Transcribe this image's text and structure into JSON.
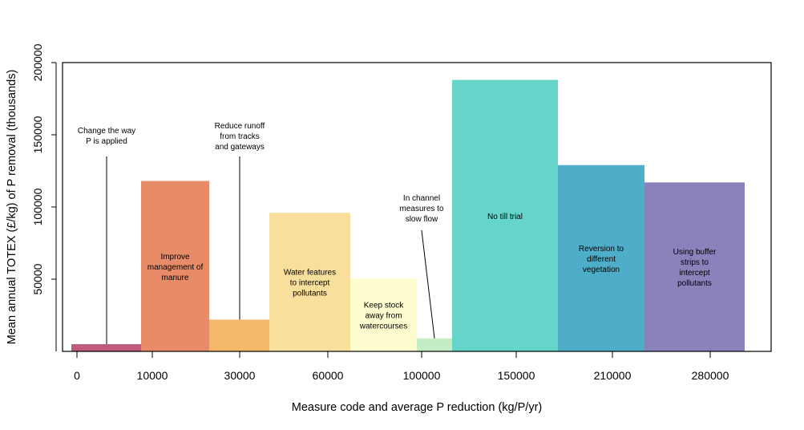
{
  "chart_data": {
    "type": "bar",
    "variable_width": true,
    "title": "",
    "xlabel": "Measure code and average P reduction (kg/P/yr)",
    "ylabel": "Mean annual TOTEX (£/kg) of P removal (thousands)",
    "ylim": [
      0,
      200000
    ],
    "yticks": [
      "50000",
      "100000",
      "150000",
      "200000"
    ],
    "ytick_values": [
      50000,
      100000,
      150000,
      200000
    ],
    "xticks": [
      "0",
      "10000",
      "30000",
      "60000",
      "100000",
      "150000",
      "210000",
      "280000"
    ],
    "grid": false,
    "legend": "none",
    "bars": [
      {
        "label": "Change the way P is applied",
        "label_lines": [
          "Change the way",
          "P is applied"
        ],
        "value": 5000,
        "width_units": 87,
        "color": "#bf5b7e",
        "label_mode": "callout"
      },
      {
        "label": "Improve management of manure",
        "label_lines": [
          "Improve",
          "management of",
          "manure"
        ],
        "value": 118000,
        "width_units": 85,
        "color": "#e78b69",
        "label_mode": "inside"
      },
      {
        "label": "Reduce runoff from tracks and gateways",
        "label_lines": [
          "Reduce runoff",
          "from tracks",
          "and gateways"
        ],
        "value": 22000,
        "width_units": 75,
        "color": "#f5b86b",
        "label_mode": "callout"
      },
      {
        "label": "Water features to intercept pollutants",
        "label_lines": [
          "Water features",
          "to intercept",
          "pollutants"
        ],
        "value": 96000,
        "width_units": 101,
        "color": "#f9df9c",
        "label_mode": "inside"
      },
      {
        "label": "Keep stock away from watercourses",
        "label_lines": [
          "Keep stock",
          "away from",
          "watercourses"
        ],
        "value": 50500,
        "width_units": 83,
        "color": "#fefdcf",
        "label_mode": "inside"
      },
      {
        "label": "In channel measures to slow flow",
        "label_lines": [
          "In channel",
          "measures to",
          "slow flow"
        ],
        "value": 9000,
        "width_units": 44,
        "color": "#c4edc4",
        "label_mode": "callout"
      },
      {
        "label": "No till trial",
        "label_lines": [
          "No till trial"
        ],
        "value": 188000,
        "width_units": 132,
        "color": "#66d5c9",
        "label_mode": "inside"
      },
      {
        "label": "Reversion to different vegetation",
        "label_lines": [
          "Reversion to",
          "different",
          "vegetation"
        ],
        "value": 129000,
        "width_units": 108,
        "color": "#4eaec9",
        "label_mode": "inside"
      },
      {
        "label": "Using buffer strips to intercept pollutants",
        "label_lines": [
          "Using buffer",
          "strips to",
          "intercept",
          "pollutants"
        ],
        "value": 117000,
        "width_units": 125,
        "color": "#8a82ba",
        "label_mode": "inside"
      }
    ]
  }
}
